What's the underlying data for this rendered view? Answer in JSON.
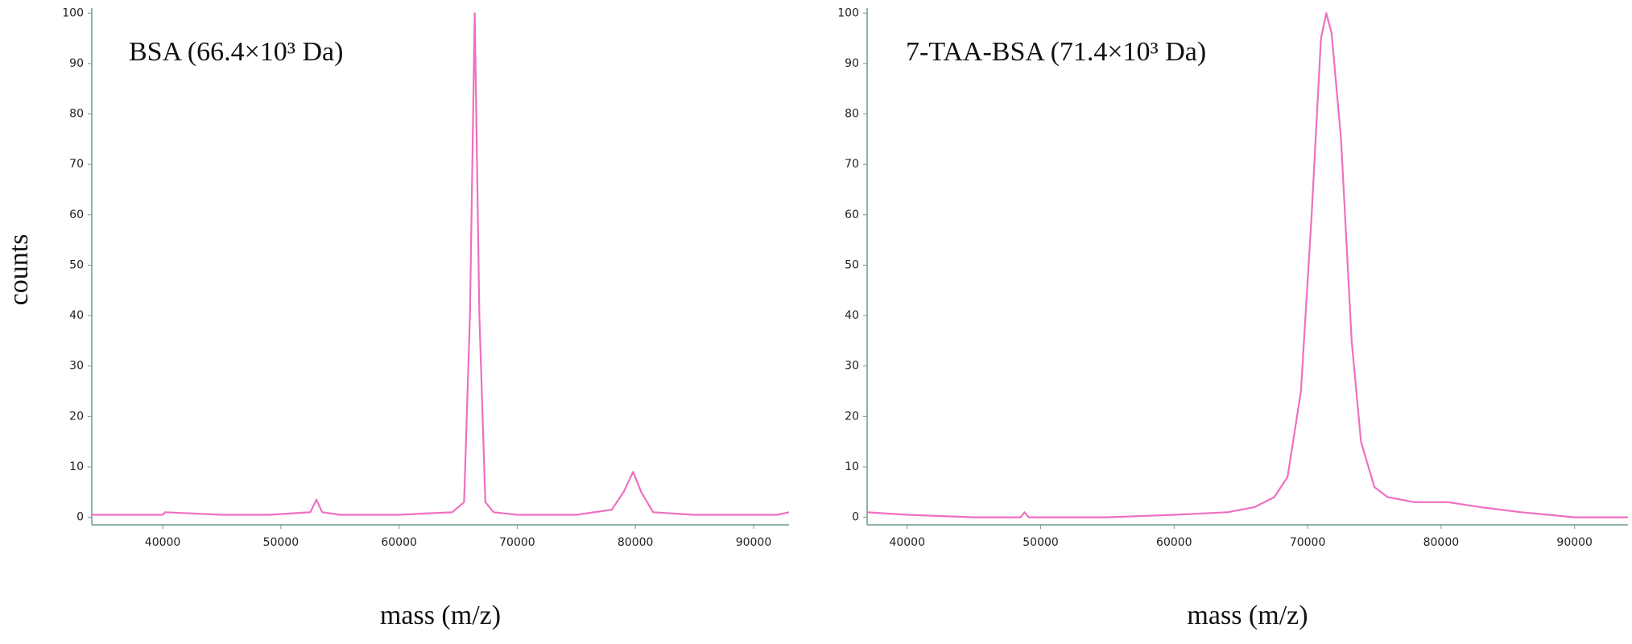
{
  "chart_data": [
    {
      "type": "line",
      "title": "BSA (66.4×10³ Da)",
      "x_label": "mass (m/z)",
      "y_label": "counts",
      "x": [
        34000,
        40000,
        40200,
        45000,
        49000,
        52500,
        53000,
        53500,
        55000,
        60000,
        62500,
        64500,
        65500,
        66000,
        66400,
        66800,
        67300,
        68000,
        70000,
        75000,
        78000,
        79000,
        79800,
        80500,
        81500,
        85000,
        90000,
        92000,
        93000
      ],
      "series": [
        {
          "color": "#ef6fc0",
          "values": [
            0.5,
            0.5,
            1,
            0.5,
            0.5,
            1,
            3.5,
            1,
            0.5,
            0.5,
            0.8,
            1,
            3,
            40,
            100,
            40,
            3,
            1,
            0.5,
            0.5,
            1.5,
            5,
            9,
            5,
            1,
            0.5,
            0.5,
            0.5,
            1
          ]
        }
      ],
      "xlim": [
        34000,
        93000
      ],
      "xticks": [
        40000,
        50000,
        60000,
        70000,
        80000,
        90000
      ],
      "ylim": [
        -1.5,
        101
      ],
      "yticks": [
        0,
        10,
        20,
        30,
        40,
        50,
        60,
        70,
        80,
        90,
        100
      ]
    },
    {
      "type": "line",
      "title": "7-TAA-BSA (71.4×10³ Da)",
      "x_label": "mass (m/z)",
      "x": [
        37000,
        40000,
        45000,
        48500,
        48800,
        49100,
        55000,
        60000,
        64000,
        66000,
        67500,
        68500,
        69500,
        70300,
        71000,
        71400,
        71800,
        72500,
        73300,
        74000,
        75000,
        76000,
        78000,
        80500,
        83000,
        86000,
        90000,
        94000
      ],
      "series": [
        {
          "color": "#ef6fc0",
          "values": [
            1,
            0.5,
            0,
            0,
            1,
            0,
            0,
            0.5,
            1,
            2,
            4,
            8,
            25,
            60,
            95,
            100,
            96,
            75,
            35,
            15,
            6,
            4,
            3,
            3,
            2,
            1,
            0,
            0
          ]
        }
      ],
      "xlim": [
        37000,
        94000
      ],
      "xticks": [
        40000,
        50000,
        60000,
        70000,
        80000,
        90000
      ],
      "ylim": [
        -1.5,
        101
      ],
      "yticks": [
        0,
        10,
        20,
        30,
        40,
        50,
        60,
        70,
        80,
        90,
        100
      ]
    }
  ]
}
